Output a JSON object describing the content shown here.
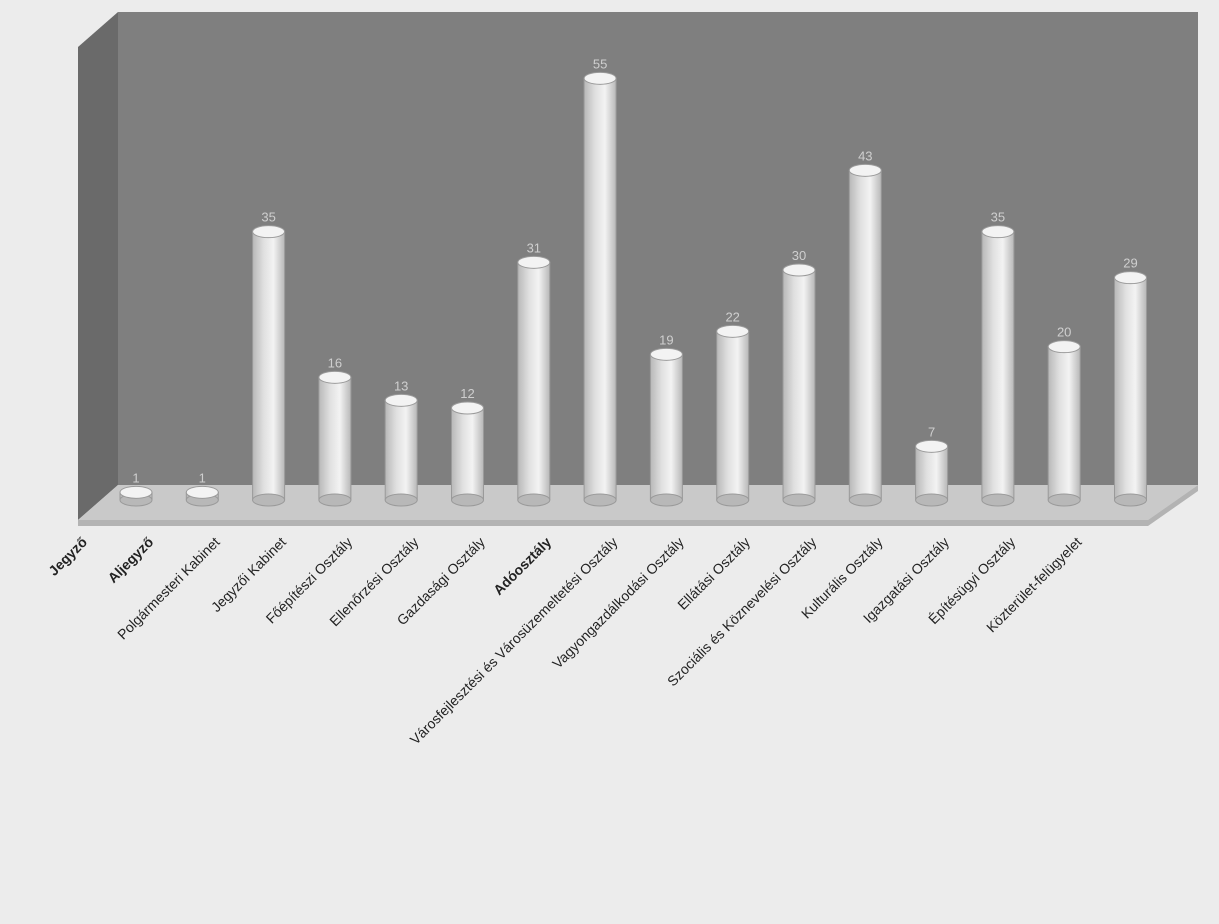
{
  "chart_data": {
    "type": "bar",
    "style": "3d-cylinder",
    "title": "",
    "xlabel": "",
    "ylabel": "",
    "ylim": [
      0,
      60
    ],
    "grid": false,
    "legend": "none",
    "categories": [
      "Jegyző",
      "Aljegyző",
      "Polgármesteri Kabinet",
      "Jegyzői Kabinet",
      "Főépítészi Osztály",
      "Ellenőrzési Osztály",
      "Gazdasági Osztály",
      "Adóosztály",
      "Városfejlesztési és Városüzemeltetési Osztály",
      "Vagyongazdálkodási Osztály",
      "Ellátási Osztály",
      "Szociális és Köznevelési Osztály",
      "Kulturális Osztály",
      "Igazgatási Osztály",
      "Építésügyi Osztály",
      "Közterület-felügyelet"
    ],
    "bold_categories": [
      "Jegyző",
      "Aljegyző",
      "Adóosztály"
    ],
    "values": [
      1,
      1,
      35,
      16,
      13,
      12,
      31,
      55,
      19,
      22,
      30,
      43,
      7,
      35,
      20,
      29
    ],
    "data_labels": [
      "1",
      "1",
      "35",
      "16",
      "13",
      "12",
      "31",
      "55",
      "19",
      "22",
      "30",
      "43",
      "7",
      "35",
      "20",
      "29"
    ],
    "colors": {
      "back_wall": "#7f7f7f",
      "side_wall": "#6a6a6a",
      "floor": "#c9c9c9",
      "floor_edge": "#b3b3b3",
      "bar": "#e0e0e0",
      "bar_shade": "#b8b8b8",
      "bar_top": "#f3f3f3",
      "bar_outline": "#9a9a9a",
      "label": "#222222",
      "data_label": "#cfcfcf"
    }
  }
}
